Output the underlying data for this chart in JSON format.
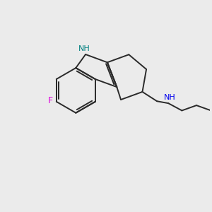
{
  "background_color": "#ebebeb",
  "bond_color": "#2a2a2a",
  "N_color": "#0000ee",
  "NH_color": "#008080",
  "F_color": "#dd00dd",
  "line_width": 1.4,
  "figsize": [
    3.0,
    3.0
  ],
  "dpi": 100,
  "xlim": [
    0,
    10
  ],
  "ylim": [
    0,
    10
  ]
}
